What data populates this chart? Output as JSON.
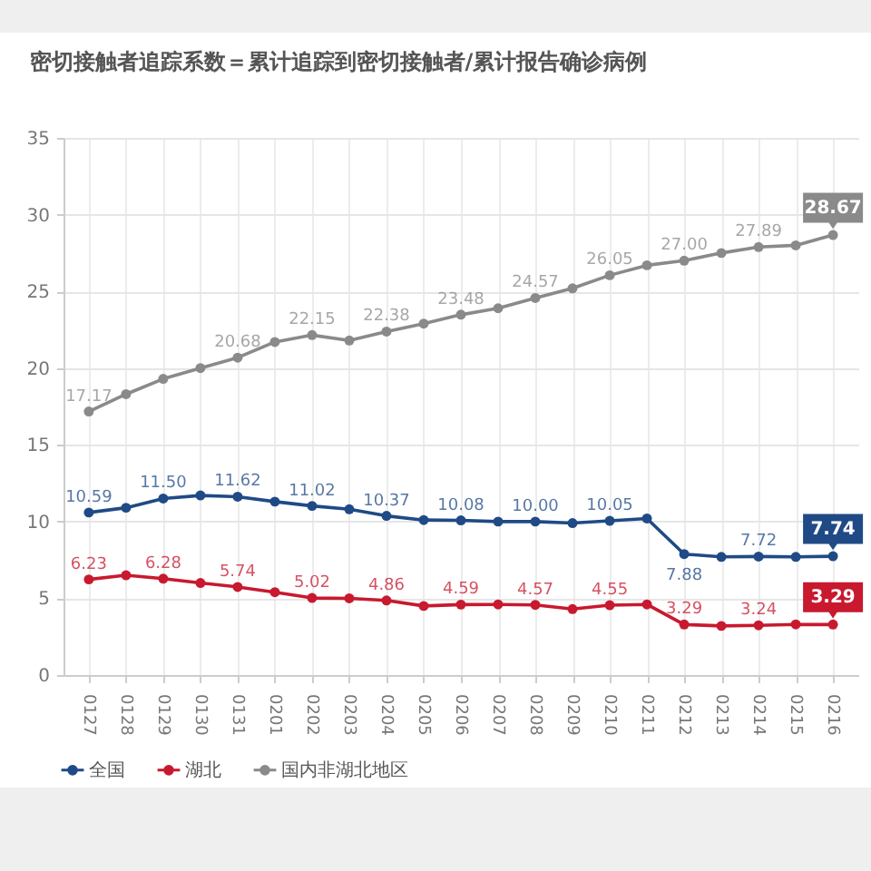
{
  "chart_data": {
    "type": "line",
    "title": "密切接触者追踪系数＝累计追踪到密切接触者/累计报告确诊病例",
    "categories": [
      "0127",
      "0128",
      "0129",
      "0130",
      "0131",
      "0201",
      "0202",
      "0203",
      "0204",
      "0205",
      "0206",
      "0207",
      "0208",
      "0209",
      "0210",
      "0211",
      "0212",
      "0213",
      "0214",
      "0215",
      "0216"
    ],
    "series": [
      {
        "name": "全国",
        "color": "#1f4a86",
        "values": [
          10.59,
          10.9,
          11.5,
          11.7,
          11.62,
          11.3,
          11.02,
          10.8,
          10.37,
          10.1,
          10.08,
          10.0,
          10.0,
          9.9,
          10.05,
          10.2,
          7.88,
          7.7,
          7.72,
          7.7,
          7.74
        ],
        "value_labels": [
          "10.59",
          null,
          "11.50",
          null,
          "11.62",
          null,
          "11.02",
          null,
          "10.37",
          null,
          "10.08",
          null,
          "10.00",
          null,
          "10.05",
          null,
          "7.88",
          null,
          "7.72",
          null,
          "7.74"
        ]
      },
      {
        "name": "湖北",
        "color": "#c8192f",
        "values": [
          6.23,
          6.5,
          6.28,
          6.0,
          5.74,
          5.4,
          5.02,
          5.0,
          4.86,
          4.5,
          4.59,
          4.6,
          4.57,
          4.3,
          4.55,
          4.6,
          3.29,
          3.2,
          3.24,
          3.3,
          3.29
        ],
        "value_labels": [
          "6.23",
          null,
          "6.28",
          null,
          "5.74",
          null,
          "5.02",
          null,
          "4.86",
          null,
          "4.59",
          null,
          "4.57",
          null,
          "4.55",
          null,
          "3.29",
          null,
          "3.24",
          null,
          "3.29"
        ]
      },
      {
        "name": "国内非湖北地区",
        "color": "#8a8a8a",
        "values": [
          17.17,
          18.3,
          19.3,
          20.0,
          20.68,
          21.7,
          22.15,
          21.8,
          22.38,
          22.9,
          23.48,
          23.9,
          24.57,
          25.2,
          26.05,
          26.7,
          27.0,
          27.5,
          27.89,
          28.0,
          28.67
        ],
        "value_labels": [
          "17.17",
          null,
          null,
          null,
          "20.68",
          null,
          "22.15",
          null,
          "22.38",
          null,
          "23.48",
          null,
          "24.57",
          null,
          "26.05",
          null,
          "27.00",
          null,
          "27.89",
          null,
          "28.67"
        ]
      }
    ],
    "ylim": [
      0,
      35
    ],
    "yticks": [
      0,
      5,
      10,
      15,
      20,
      25,
      30,
      35
    ],
    "grid": true,
    "legend": "bottom",
    "marker": "circle",
    "line_style": "solid"
  }
}
